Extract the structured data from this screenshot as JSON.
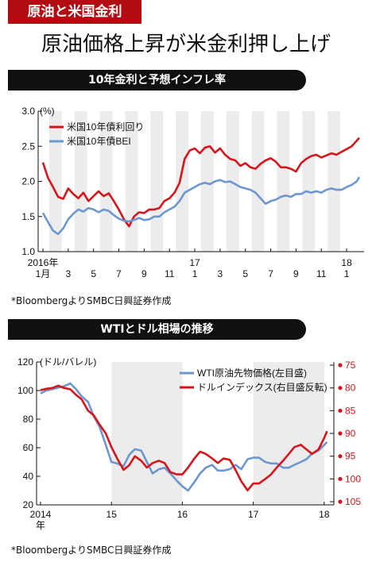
{
  "header": {
    "tag": "原油と米国金利",
    "headline": "原油価格上昇が米金利押し上げ"
  },
  "chart_data": [
    {
      "type": "line",
      "title": "10年金利と予想インフレ率",
      "unit": "(%)",
      "source": "*BloombergよりSMBC日興証券作成",
      "xlim": [
        0,
        25
      ],
      "ylim": [
        1.0,
        3.0
      ],
      "yticks": [
        "3.0",
        "2.5",
        "2.0",
        "1.5",
        "1.0"
      ],
      "xtick_labels": [
        {
          "x": 0,
          "label": "1月",
          "top": "2016年"
        },
        {
          "x": 2,
          "label": "3"
        },
        {
          "x": 4,
          "label": "5"
        },
        {
          "x": 6,
          "label": "7"
        },
        {
          "x": 8,
          "label": "9"
        },
        {
          "x": 10,
          "label": "11"
        },
        {
          "x": 12,
          "label": "1",
          "top": "17"
        },
        {
          "x": 14,
          "label": "3"
        },
        {
          "x": 16,
          "label": "5"
        },
        {
          "x": 18,
          "label": "7"
        },
        {
          "x": 20,
          "label": "9"
        },
        {
          "x": 22,
          "label": "11"
        },
        {
          "x": 24,
          "label": "1",
          "top": "18"
        }
      ],
      "shaded_months": [
        1,
        3,
        5,
        7,
        9,
        11,
        13,
        15,
        17,
        19,
        21,
        23
      ],
      "legend": "top-left",
      "series": [
        {
          "name": "米国10年債利回り",
          "color": "#d7141c",
          "x": [
            0,
            0.4,
            0.8,
            1.2,
            1.6,
            2,
            2.4,
            2.8,
            3.2,
            3.6,
            4,
            4.4,
            4.8,
            5.2,
            5.6,
            6,
            6.4,
            6.8,
            7.2,
            7.6,
            8,
            8.4,
            8.8,
            9.2,
            9.6,
            10,
            10.4,
            10.8,
            11.2,
            11.6,
            12,
            12.4,
            12.8,
            13.2,
            13.6,
            14,
            14.4,
            14.8,
            15.2,
            15.6,
            16,
            16.4,
            16.8,
            17.2,
            17.6,
            18,
            18.4,
            18.8,
            19.2,
            19.6,
            20,
            20.4,
            20.8,
            21.2,
            21.6,
            22,
            22.4,
            22.8,
            23.2,
            23.6,
            24,
            24.4,
            24.8,
            25
          ],
          "values": [
            2.27,
            2.05,
            1.92,
            1.78,
            1.75,
            1.9,
            1.82,
            1.76,
            1.84,
            1.72,
            1.79,
            1.86,
            1.79,
            1.83,
            1.72,
            1.6,
            1.46,
            1.36,
            1.5,
            1.56,
            1.55,
            1.6,
            1.6,
            1.62,
            1.72,
            1.76,
            1.84,
            1.98,
            2.32,
            2.44,
            2.47,
            2.4,
            2.48,
            2.5,
            2.41,
            2.47,
            2.38,
            2.32,
            2.3,
            2.22,
            2.26,
            2.2,
            2.18,
            2.25,
            2.3,
            2.33,
            2.28,
            2.2,
            2.2,
            2.18,
            2.14,
            2.26,
            2.32,
            2.36,
            2.38,
            2.34,
            2.37,
            2.4,
            2.38,
            2.42,
            2.46,
            2.5,
            2.58,
            2.62
          ]
        },
        {
          "name": "米国10年債BEI",
          "color": "#6d97cf",
          "x": [
            0,
            0.4,
            0.8,
            1.2,
            1.6,
            2,
            2.4,
            2.8,
            3.2,
            3.6,
            4,
            4.4,
            4.8,
            5.2,
            5.6,
            6,
            6.4,
            6.8,
            7.2,
            7.6,
            8,
            8.4,
            8.8,
            9.2,
            9.6,
            10,
            10.4,
            10.8,
            11.2,
            11.6,
            12,
            12.4,
            12.8,
            13.2,
            13.6,
            14,
            14.4,
            14.8,
            15.2,
            15.6,
            16,
            16.4,
            16.8,
            17.2,
            17.6,
            18,
            18.4,
            18.8,
            19.2,
            19.6,
            20,
            20.4,
            20.8,
            21.2,
            21.6,
            22,
            22.4,
            22.8,
            23.2,
            23.6,
            24,
            24.4,
            24.8,
            25
          ],
          "values": [
            1.55,
            1.42,
            1.3,
            1.25,
            1.33,
            1.46,
            1.54,
            1.6,
            1.57,
            1.62,
            1.6,
            1.56,
            1.6,
            1.58,
            1.52,
            1.47,
            1.44,
            1.43,
            1.45,
            1.48,
            1.45,
            1.46,
            1.5,
            1.5,
            1.56,
            1.6,
            1.64,
            1.72,
            1.84,
            1.88,
            1.92,
            1.96,
            1.98,
            1.96,
            2.0,
            2.02,
            1.99,
            2.0,
            1.96,
            1.92,
            1.9,
            1.88,
            1.84,
            1.76,
            1.68,
            1.72,
            1.74,
            1.78,
            1.8,
            1.78,
            1.82,
            1.82,
            1.86,
            1.84,
            1.86,
            1.84,
            1.88,
            1.9,
            1.88,
            1.88,
            1.92,
            1.95,
            2.0,
            2.06
          ]
        }
      ]
    },
    {
      "type": "line",
      "title": "WTIとドル相場の推移",
      "unit": "(ドル/バレル)",
      "source": "*BloombergよりSMBC日興証券作成",
      "xlim": [
        2014.0,
        2018.08
      ],
      "ylim": [
        20,
        120
      ],
      "yticks": [
        "120",
        "100",
        "80",
        "60",
        "40",
        "20"
      ],
      "y2lim": [
        105,
        75
      ],
      "y2ticks": [
        "75",
        "80",
        "85",
        "90",
        "95",
        "100",
        "105"
      ],
      "xtick_labels": [
        {
          "x": 2014,
          "label": "2014",
          "sub": "年"
        },
        {
          "x": 2015,
          "label": "15"
        },
        {
          "x": 2016,
          "label": "16"
        },
        {
          "x": 2017,
          "label": "17"
        },
        {
          "x": 2018,
          "label": "18"
        }
      ],
      "shaded_years": [
        [
          2015,
          2016
        ],
        [
          2017,
          2018
        ]
      ],
      "legend": "top-right",
      "series": [
        {
          "name": "WTI原油先物価格(左目盛)",
          "axis": "left",
          "color": "#6d97cf",
          "x": [
            2014.0,
            2014.08,
            2014.17,
            2014.25,
            2014.33,
            2014.42,
            2014.5,
            2014.58,
            2014.67,
            2014.75,
            2014.83,
            2014.92,
            2015.0,
            2015.08,
            2015.17,
            2015.25,
            2015.33,
            2015.42,
            2015.5,
            2015.58,
            2015.67,
            2015.75,
            2015.83,
            2015.92,
            2016.0,
            2016.08,
            2016.17,
            2016.25,
            2016.33,
            2016.42,
            2016.5,
            2016.58,
            2016.67,
            2016.75,
            2016.83,
            2016.92,
            2017.0,
            2017.08,
            2017.17,
            2017.25,
            2017.33,
            2017.42,
            2017.5,
            2017.58,
            2017.67,
            2017.75,
            2017.83,
            2017.92,
            2018.0,
            2018.04
          ],
          "values": [
            98,
            100,
            101,
            102,
            103,
            105,
            101,
            96,
            92,
            82,
            75,
            62,
            50,
            49,
            47,
            55,
            59,
            58,
            50,
            42,
            45,
            46,
            42,
            37,
            33,
            30,
            36,
            42,
            46,
            48,
            44,
            44,
            45,
            48,
            45,
            52,
            53,
            53,
            50,
            49,
            49,
            46,
            46,
            48,
            50,
            52,
            56,
            58,
            62,
            64
          ]
        },
        {
          "name": "ドルインデックス(右目盛反転)",
          "axis": "right",
          "color": "#d7141c",
          "x": [
            2014.0,
            2014.08,
            2014.17,
            2014.25,
            2014.33,
            2014.42,
            2014.5,
            2014.58,
            2014.67,
            2014.75,
            2014.83,
            2014.92,
            2015.0,
            2015.08,
            2015.17,
            2015.25,
            2015.33,
            2015.42,
            2015.5,
            2015.58,
            2015.67,
            2015.75,
            2015.83,
            2015.92,
            2016.0,
            2016.08,
            2016.17,
            2016.25,
            2016.33,
            2016.42,
            2016.5,
            2016.58,
            2016.67,
            2016.75,
            2016.83,
            2016.92,
            2017.0,
            2017.08,
            2017.17,
            2017.25,
            2017.33,
            2017.42,
            2017.5,
            2017.58,
            2017.67,
            2017.75,
            2017.83,
            2017.92,
            2018.0,
            2018.04
          ],
          "values": [
            80.5,
            80.2,
            80.0,
            79.5,
            80.0,
            80.3,
            81.5,
            82.5,
            85.0,
            86.0,
            88.0,
            90.0,
            93.0,
            95.5,
            98.0,
            97.0,
            95.0,
            96.0,
            97.5,
            96.5,
            96.0,
            96.5,
            98.5,
            99.0,
            99.0,
            97.5,
            95.5,
            94.0,
            94.5,
            95.5,
            96.5,
            95.5,
            95.8,
            98.0,
            100.5,
            102.5,
            101.0,
            101.0,
            100.0,
            99.0,
            97.5,
            96.0,
            94.5,
            93.0,
            92.5,
            93.5,
            94.5,
            93.5,
            91.0,
            89.5
          ]
        }
      ]
    }
  ]
}
